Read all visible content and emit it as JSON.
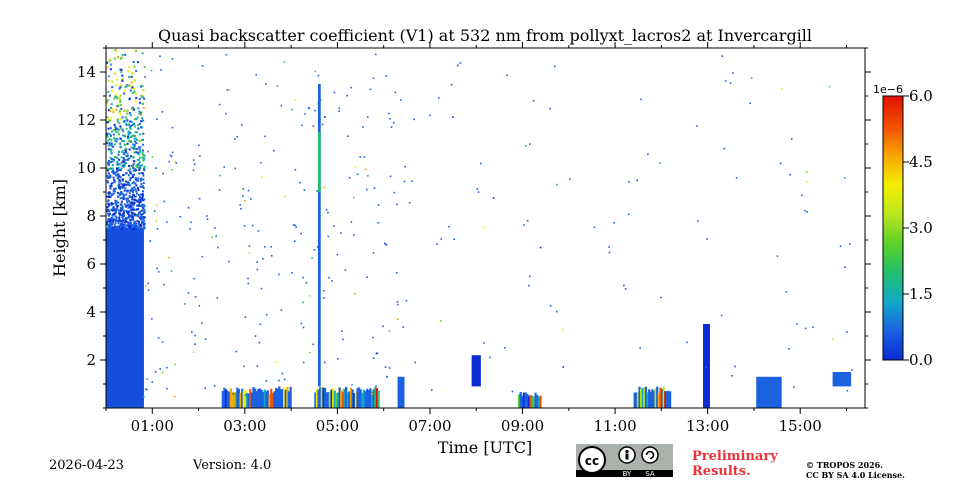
{
  "colors": {
    "low": "#1450dc",
    "colormap": [
      "#0a2bd6",
      "#1a62e0",
      "#14a8c8",
      "#22c070",
      "#5cd02a",
      "#b8e61e",
      "#f4f000",
      "#f8a800",
      "#f45200",
      "#e01000"
    ],
    "prelim": "#e8333b"
  },
  "chart_data": {
    "type": "heatmap",
    "title": "Quasi backscatter coefficient (V1) at 532 nm from pollyxt_lacros2 at Invercargill",
    "xlabel": "Time [UTC]",
    "ylabel": "Height [km]",
    "x_unit": "hours UTC",
    "xlim": [
      0.0,
      16.4
    ],
    "ylim": [
      0.0,
      15.0
    ],
    "x_ticks": [
      {
        "value": 1,
        "label": "01:00"
      },
      {
        "value": 3,
        "label": "03:00"
      },
      {
        "value": 5,
        "label": "05:00"
      },
      {
        "value": 7,
        "label": "07:00"
      },
      {
        "value": 9,
        "label": "09:00"
      },
      {
        "value": 11,
        "label": "11:00"
      },
      {
        "value": 13,
        "label": "13:00"
      },
      {
        "value": 15,
        "label": "15:00"
      }
    ],
    "y_ticks": [
      {
        "value": 2,
        "label": "2"
      },
      {
        "value": 4,
        "label": "4"
      },
      {
        "value": 6,
        "label": "6"
      },
      {
        "value": 8,
        "label": "8"
      },
      {
        "value": 10,
        "label": "10"
      },
      {
        "value": 12,
        "label": "12"
      },
      {
        "value": 14,
        "label": "14"
      }
    ],
    "colorbar": {
      "min": 0.0,
      "max": 6.0,
      "scale_label": "1e−6",
      "ticks": [
        {
          "value": 0.0,
          "label": "0.0"
        },
        {
          "value": 1.5,
          "label": "1.5"
        },
        {
          "value": 3.0,
          "label": "3.0"
        },
        {
          "value": 4.5,
          "label": "4.5"
        },
        {
          "value": 6.0,
          "label": "6.0"
        }
      ]
    },
    "features": [
      {
        "name": "dense-profile-block",
        "x_start": 0.0,
        "x_end": 0.82,
        "y_bottom": 0.0,
        "y_top": 15.0,
        "value": 0.2
      },
      {
        "name": "low-aerosol-layer-1",
        "x_start": 2.5,
        "x_end": 4.0,
        "y_bottom": 0.0,
        "y_top": 0.9,
        "value": 1.5
      },
      {
        "name": "low-aerosol-layer-2",
        "x_start": 4.5,
        "x_end": 5.9,
        "y_bottom": 0.0,
        "y_top": 0.9,
        "value": 2.0
      },
      {
        "name": "vertical-streak-0450",
        "x_start": 4.58,
        "x_end": 4.64,
        "y_bottom": 0.9,
        "y_top": 13.5,
        "value": 0.5
      },
      {
        "name": "short-column-0355",
        "x_start": 6.3,
        "x_end": 6.45,
        "y_bottom": 0.0,
        "y_top": 1.3,
        "value": 0.4
      },
      {
        "name": "short-column-0800",
        "x_start": 7.9,
        "x_end": 8.1,
        "y_bottom": 0.9,
        "y_top": 2.2,
        "value": 0.3
      },
      {
        "name": "low-patch-0900",
        "x_start": 8.9,
        "x_end": 9.4,
        "y_bottom": 0.0,
        "y_top": 0.7,
        "value": 3.0
      },
      {
        "name": "low-patch-1130",
        "x_start": 11.4,
        "x_end": 12.2,
        "y_bottom": 0.0,
        "y_top": 0.9,
        "value": 3.5
      },
      {
        "name": "column-1300",
        "x_start": 12.9,
        "x_end": 13.05,
        "y_bottom": 0.0,
        "y_top": 3.5,
        "value": 0.3
      },
      {
        "name": "column-1415",
        "x_start": 14.05,
        "x_end": 14.6,
        "y_bottom": 0.0,
        "y_top": 1.3,
        "value": 0.4
      },
      {
        "name": "column-1545",
        "x_start": 15.7,
        "x_end": 16.1,
        "y_bottom": 0.9,
        "y_top": 1.5,
        "value": 0.4
      }
    ]
  },
  "footer": {
    "date": "2026-04-23",
    "version": "Version: 4.0",
    "cc_by": "BY",
    "cc_sa": "SA",
    "prelim_line1": "Preliminary",
    "prelim_line2": "Results.",
    "license_line1": "© TROPOS 2026.",
    "license_line2": "CC BY SA 4.0 License."
  }
}
